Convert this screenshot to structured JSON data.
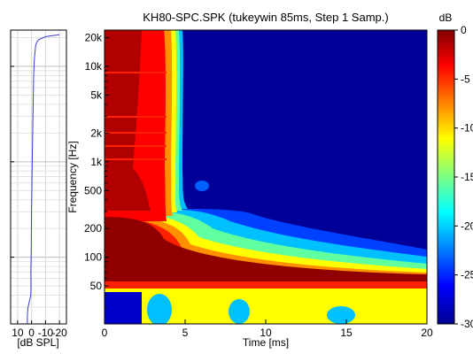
{
  "chart_data": [
    {
      "type": "line",
      "xlabel": "[dB SPL]",
      "x_ticks": [
        "10",
        "0",
        "-10",
        "-20"
      ],
      "x_direction": "reversed",
      "xlim": [
        15,
        -25
      ],
      "y_scale": "log",
      "ylim": [
        20,
        24000
      ],
      "grid": true,
      "line_color": "#3a3ad0",
      "series": [
        {
          "x": [
            3,
            3,
            2.5,
            1.5,
            0.5,
            0.4,
            0.5,
            0.3,
            0,
            -0.5,
            -1,
            -1.5,
            -2,
            -3,
            -5,
            -10,
            -15,
            -20
          ],
          "y": [
            20,
            25,
            30,
            35,
            40,
            50,
            70,
            100,
            300,
            1000,
            3000,
            8000,
            12000,
            17000,
            19000,
            20500,
            21000,
            21500
          ]
        }
      ]
    },
    {
      "type": "heatmap",
      "title": "KH80-SPC.SPK (tukeywin 85ms, Step 1 Samp.)",
      "xlabel": "Time [ms]",
      "ylabel": "Frequency [Hz]",
      "xlim": [
        0,
        20
      ],
      "x_ticks": [
        "0",
        "5",
        "10",
        "15",
        "20"
      ],
      "y_scale": "log",
      "ylim": [
        20,
        24000
      ],
      "y_ticks": [
        "20k",
        "10k",
        "5k",
        "2k",
        "1k",
        "500",
        "200",
        "100",
        "50"
      ],
      "colorbar": {
        "label": "dB",
        "range": [
          -30,
          0
        ],
        "ticks": [
          "0",
          "-5",
          "-10",
          "-15",
          "-20",
          "-25",
          "-30"
        ],
        "colormap": "jet"
      }
    }
  ]
}
